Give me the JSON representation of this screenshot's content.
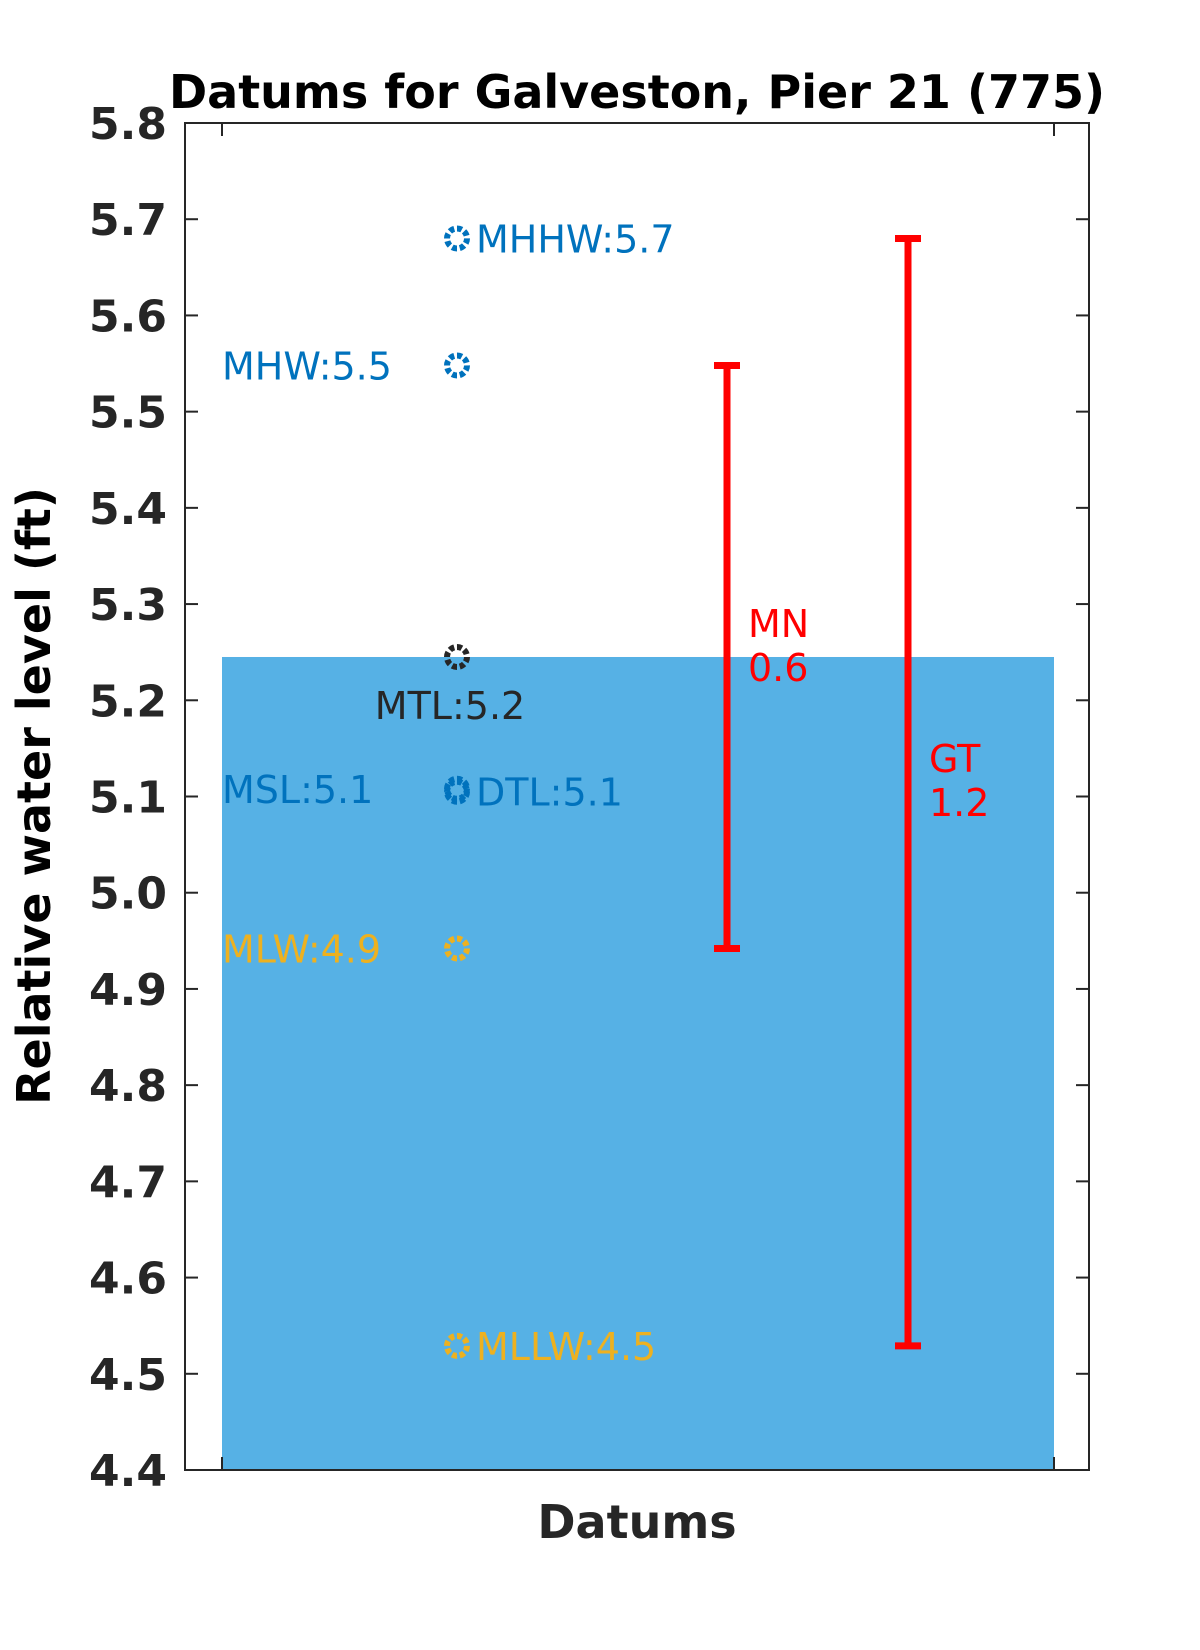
{
  "chart_data": {
    "type": "scatter",
    "title": "Datums for Galveston, Pier 21 (775)",
    "xlabel": "Datums",
    "ylabel": "Relative water level (ft)",
    "ylim": [
      4.4,
      5.8
    ],
    "yticks": [
      "4.4",
      "4.5",
      "4.6",
      "4.7",
      "4.8",
      "4.9",
      "5.0",
      "5.1",
      "5.2",
      "5.3",
      "5.4",
      "5.5",
      "5.6",
      "5.7",
      "5.8"
    ],
    "grid": false,
    "background_bar": {
      "top": 5.245,
      "color": "#56B1E5"
    },
    "points": [
      {
        "label": "MHHW:5.7",
        "value": 5.68,
        "color": "#0072BD",
        "label_side": "right"
      },
      {
        "label": "MHW:5.5",
        "value": 5.548,
        "color": "#0072BD",
        "label_side": "left"
      },
      {
        "label": "MTL:5.2",
        "value": 5.245,
        "color": "#262626",
        "label_side": "below"
      },
      {
        "label": "MSL:5.1",
        "value": 5.108,
        "color": "#0072BD",
        "label_side": "left"
      },
      {
        "label": "DTL:5.1",
        "value": 5.105,
        "color": "#0072BD",
        "label_side": "right"
      },
      {
        "label": "MLW:4.9",
        "value": 4.942,
        "color": "#EDB120",
        "label_side": "left"
      },
      {
        "label": "MLLW:4.5",
        "value": 4.529,
        "color": "#EDB120",
        "label_side": "right"
      }
    ],
    "ranges": [
      {
        "name": "MN",
        "value": "0.6",
        "low": 4.942,
        "high": 5.548,
        "color": "#FF0000"
      },
      {
        "name": "GT",
        "value": "1.2",
        "low": 4.529,
        "high": 5.68,
        "color": "#FF0000"
      }
    ]
  }
}
